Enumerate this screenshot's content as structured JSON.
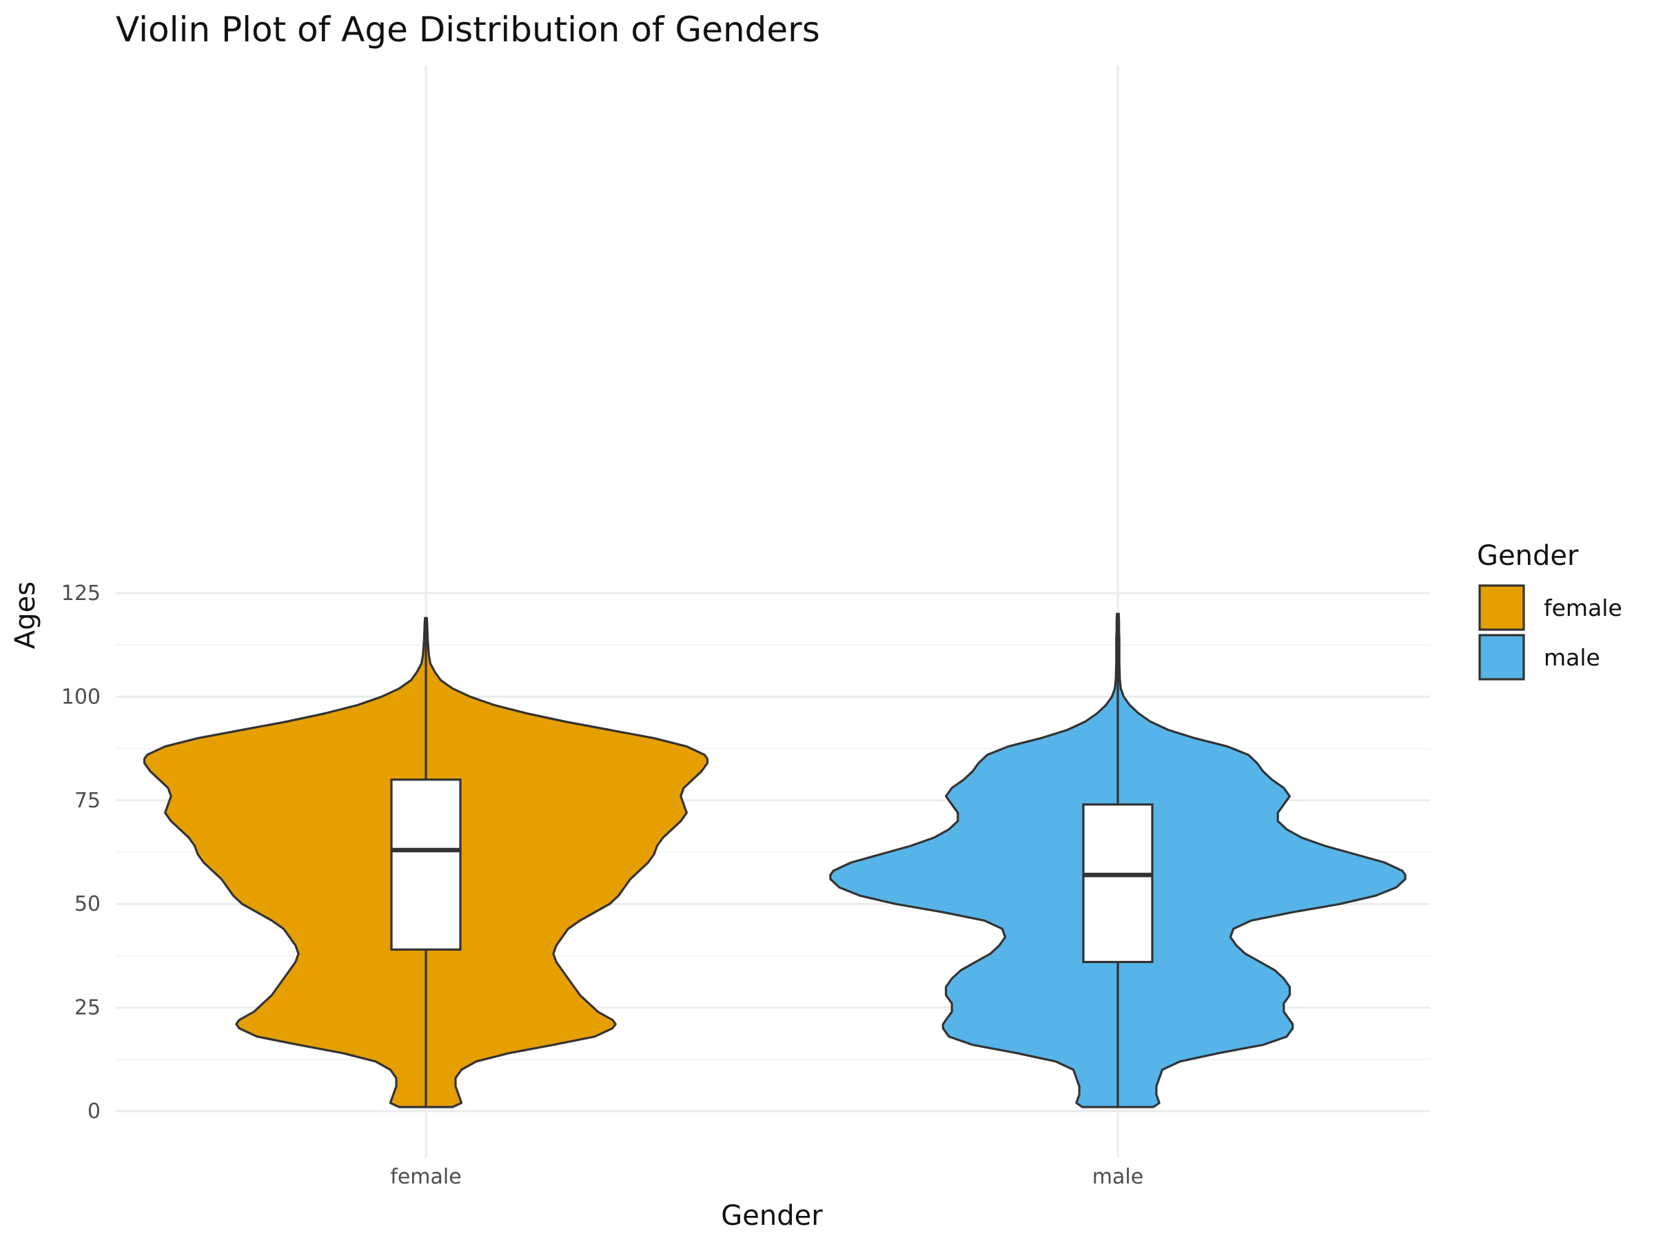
{
  "chart_data": {
    "type": "violin",
    "title": "Violin Plot of Age Distribution of Genders",
    "xlabel": "Gender",
    "ylabel": "Ages",
    "ylim": [
      0,
      125
    ],
    "yticks": [
      0,
      25,
      50,
      75,
      100,
      125
    ],
    "categories": [
      "female",
      "male"
    ],
    "grid": true,
    "legend": {
      "title": "Gender",
      "placement": "right",
      "entries": [
        {
          "label": "female",
          "color": "#E69F00"
        },
        {
          "label": "male",
          "color": "#56B4E9"
        }
      ]
    },
    "series": [
      {
        "name": "female",
        "color": "#E69F00",
        "box": {
          "whisker_low": 1,
          "q1": 39,
          "median": 63,
          "q3": 80,
          "whisker_high": 119
        },
        "density": {
          "age": [
            1,
            2,
            4,
            6,
            8,
            10,
            12,
            14,
            16,
            18,
            20,
            21,
            22,
            24,
            26,
            28,
            30,
            32,
            34,
            36,
            38,
            40,
            42,
            44,
            46,
            48,
            50,
            52,
            54,
            56,
            58,
            60,
            62,
            64,
            66,
            68,
            70,
            72,
            74,
            76,
            78,
            80,
            82,
            84,
            85,
            86,
            88,
            90,
            92,
            94,
            96,
            98,
            100,
            102,
            104,
            106,
            108,
            110,
            112,
            114,
            116,
            118,
            119
          ],
          "width": [
            0.09,
            0.12,
            0.11,
            0.1,
            0.1,
            0.12,
            0.17,
            0.28,
            0.43,
            0.57,
            0.63,
            0.64,
            0.63,
            0.58,
            0.55,
            0.52,
            0.5,
            0.48,
            0.46,
            0.44,
            0.43,
            0.44,
            0.46,
            0.48,
            0.52,
            0.57,
            0.62,
            0.65,
            0.67,
            0.69,
            0.72,
            0.75,
            0.77,
            0.78,
            0.8,
            0.83,
            0.86,
            0.88,
            0.87,
            0.86,
            0.87,
            0.9,
            0.93,
            0.95,
            0.95,
            0.94,
            0.88,
            0.77,
            0.62,
            0.47,
            0.34,
            0.23,
            0.15,
            0.09,
            0.05,
            0.03,
            0.015,
            0.01,
            0.008,
            0.006,
            0.005,
            0.004,
            0.003
          ]
        }
      },
      {
        "name": "male",
        "color": "#56B4E9",
        "box": {
          "whisker_low": 1,
          "q1": 36,
          "median": 57,
          "q3": 74,
          "whisker_high": 120
        },
        "density": {
          "age": [
            1,
            2,
            4,
            6,
            8,
            10,
            12,
            14,
            16,
            18,
            20,
            21,
            22,
            24,
            26,
            28,
            30,
            32,
            34,
            36,
            38,
            40,
            42,
            44,
            46,
            48,
            50,
            52,
            54,
            56,
            57,
            58,
            60,
            62,
            64,
            66,
            68,
            70,
            72,
            74,
            76,
            78,
            80,
            82,
            84,
            86,
            88,
            90,
            92,
            94,
            96,
            98,
            100,
            102,
            104,
            106,
            108,
            110,
            112,
            114,
            116,
            118,
            120
          ],
          "width": [
            0.12,
            0.14,
            0.13,
            0.13,
            0.14,
            0.15,
            0.21,
            0.34,
            0.49,
            0.57,
            0.59,
            0.59,
            0.58,
            0.56,
            0.56,
            0.58,
            0.58,
            0.56,
            0.53,
            0.48,
            0.43,
            0.4,
            0.38,
            0.39,
            0.45,
            0.59,
            0.75,
            0.87,
            0.94,
            0.97,
            0.97,
            0.96,
            0.9,
            0.8,
            0.7,
            0.62,
            0.57,
            0.54,
            0.54,
            0.56,
            0.58,
            0.56,
            0.52,
            0.49,
            0.47,
            0.44,
            0.37,
            0.26,
            0.17,
            0.11,
            0.07,
            0.04,
            0.02,
            0.01,
            0.007,
            0.006,
            0.005,
            0.005,
            0.005,
            0.005,
            0.004,
            0.004,
            0.003
          ]
        }
      }
    ]
  }
}
